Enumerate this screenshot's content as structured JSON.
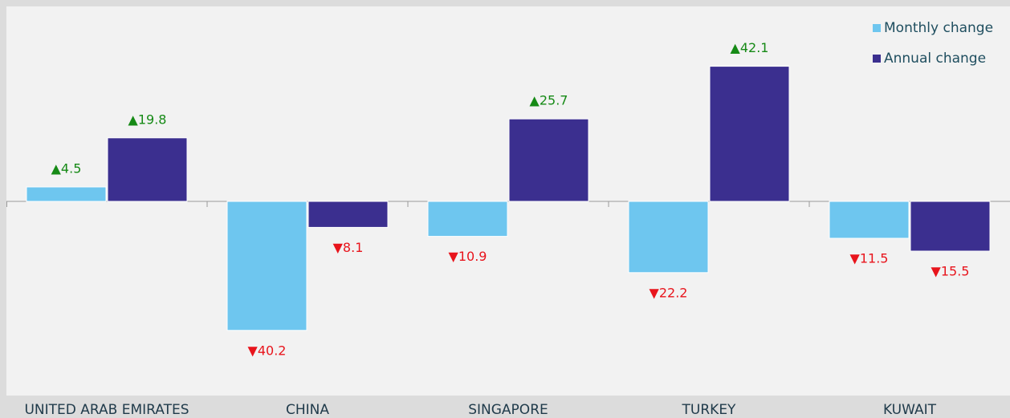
{
  "chart_data": {
    "type": "bar",
    "categories": [
      "UNITED ARAB EMIRATES",
      "CHINA",
      "SINGAPORE",
      "TURKEY",
      "KUWAIT"
    ],
    "series": [
      {
        "name": "Monthly change",
        "color": "#6ec6ef",
        "values": [
          4.5,
          -40.2,
          -10.9,
          -22.2,
          -11.5
        ],
        "value_labels": [
          "▲4.5",
          "▼40.2",
          "▼10.9",
          "▼22.2",
          "▼11.5"
        ]
      },
      {
        "name": "Annual change",
        "color": "#3b2f8f",
        "values": [
          19.8,
          -8.1,
          25.7,
          42.1,
          -15.5
        ],
        "value_labels": [
          "▲19.8",
          "▼8.1",
          "▲25.7",
          "▲42.1",
          "▼15.5"
        ]
      }
    ],
    "ylim": [
      -60,
      60
    ],
    "legend": "top-right",
    "positive_label_color": "#168a16",
    "negative_label_color": "#e8141c"
  }
}
